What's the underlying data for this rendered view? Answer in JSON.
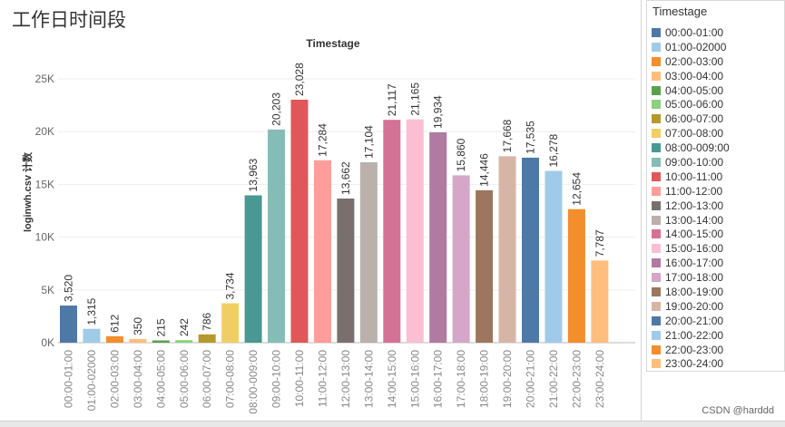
{
  "page": {
    "title": "工作日时间段",
    "watermark": "CSDN @harddd"
  },
  "legend": {
    "title": "Timestage"
  },
  "chart_data": {
    "type": "bar",
    "title": "Timestage",
    "xlabel": "",
    "ylabel": "loginwh.csv 计数",
    "ylim": [
      0,
      25000
    ],
    "grid": true,
    "legend_position": "right",
    "yticks": [
      {
        "value": 0,
        "label": "0K"
      },
      {
        "value": 5000,
        "label": "5K"
      },
      {
        "value": 10000,
        "label": "10K"
      },
      {
        "value": 15000,
        "label": "15K"
      },
      {
        "value": 20000,
        "label": "20K"
      },
      {
        "value": 25000,
        "label": "25K"
      }
    ],
    "categories": [
      "00:00-01:00",
      "01:00-02000",
      "02:00-03:00",
      "03:00-04:00",
      "04:00-05:00",
      "05:00-06:00",
      "06:00-07:00",
      "07:00-08:00",
      "08:00-009:00",
      "09:00-10:00",
      "10:00-11:00",
      "11:00-12:00",
      "12:00-13:00",
      "13:00-14:00",
      "14:00-15:00",
      "15:00-16:00",
      "16:00-17:00",
      "17:00-18:00",
      "18:00-19:00",
      "19:00-20:00",
      "20:00-21:00",
      "21:00-22:00",
      "22:00-23:00",
      "23:00-24:00"
    ],
    "values": [
      3520,
      1315,
      612,
      350,
      215,
      242,
      786,
      3734,
      13963,
      20203,
      23028,
      17284,
      13662,
      17104,
      21117,
      21165,
      19934,
      15860,
      14446,
      17668,
      17535,
      16278,
      12654,
      7787
    ],
    "value_labels": [
      "3,520",
      "1,315",
      "612",
      "350",
      "215",
      "242",
      "786",
      "3,734",
      "13,963",
      "20,203",
      "23,028",
      "17,284",
      "13,662",
      "17,104",
      "21,117",
      "21,165",
      "19,934",
      "15,860",
      "14,446",
      "17,668",
      "17,535",
      "16,278",
      "12,654",
      "7,787"
    ],
    "colors": [
      "#4e79a7",
      "#a0cbe8",
      "#f28e2b",
      "#ffbe7d",
      "#59a14f",
      "#8cd17d",
      "#b6992d",
      "#f1ce63",
      "#499894",
      "#86bcb6",
      "#e15759",
      "#ff9d9a",
      "#79706e",
      "#bab0ac",
      "#d37295",
      "#fabfd2",
      "#b07aa1",
      "#d4a6c8",
      "#9d7660",
      "#d7b5a6",
      "#4e79a7",
      "#a0cbe8",
      "#f28e2b",
      "#ffbe7d"
    ]
  }
}
